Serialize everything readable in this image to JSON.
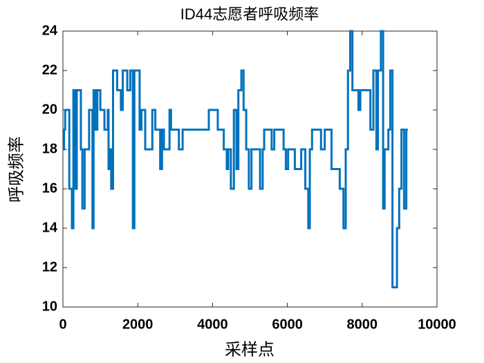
{
  "chart_data": {
    "type": "line",
    "title": "ID44志愿者呼吸频率",
    "xlabel": "采样点",
    "ylabel": "呼吸频率",
    "xlim": [
      0,
      10000
    ],
    "xticks": [
      0,
      2000,
      4000,
      6000,
      8000,
      10000
    ],
    "ylim": [
      10,
      24
    ],
    "yticks": [
      10,
      12,
      14,
      16,
      18,
      20,
      22,
      24
    ],
    "series": [
      {
        "color": "#0072bd",
        "x": [
          0,
          30,
          30,
          60,
          60,
          170,
          170,
          240,
          240,
          280,
          280,
          330,
          330,
          370,
          370,
          480,
          480,
          520,
          520,
          580,
          580,
          700,
          700,
          790,
          790,
          820,
          820,
          870,
          870,
          920,
          920,
          1000,
          1000,
          1110,
          1110,
          1200,
          1200,
          1220,
          1220,
          1270,
          1270,
          1290,
          1290,
          1340,
          1340,
          1450,
          1450,
          1550,
          1550,
          1600,
          1600,
          1720,
          1720,
          1800,
          1800,
          1870,
          1870,
          1910,
          1910,
          2050,
          2050,
          2100,
          2100,
          2200,
          2200,
          2390,
          2390,
          2470,
          2470,
          2600,
          2600,
          2650,
          2650,
          2700,
          2700,
          2850,
          2850,
          2890,
          2890,
          3100,
          3100,
          3200,
          3200,
          3900,
          3900,
          4140,
          4140,
          4300,
          4300,
          4380,
          4380,
          4420,
          4420,
          4490,
          4490,
          4570,
          4570,
          4640,
          4640,
          4690,
          4690,
          4770,
          4770,
          4830,
          4830,
          4900,
          4900,
          4970,
          4970,
          5040,
          5040,
          5270,
          5270,
          5340,
          5340,
          5380,
          5380,
          5580,
          5580,
          5650,
          5650,
          5900,
          5900,
          5960,
          5960,
          6020,
          6020,
          6200,
          6200,
          6370,
          6370,
          6480,
          6480,
          6560,
          6560,
          6600,
          6600,
          6660,
          6660,
          6900,
          6900,
          7000,
          7000,
          7180,
          7180,
          7400,
          7400,
          7500,
          7500,
          7560,
          7560,
          7620,
          7620,
          7680,
          7680,
          7740,
          7740,
          7900,
          7900,
          7950,
          7950,
          8220,
          8220,
          8300,
          8300,
          8380,
          8380,
          8420,
          8420,
          8500,
          8500,
          8560,
          8560,
          8600,
          8600,
          8700,
          8700,
          8750,
          8750,
          8810,
          8810,
          8930,
          8930,
          8990,
          8990,
          9050,
          9050,
          9120,
          9120,
          9180,
          9180,
          9220
        ],
        "values": [
          18,
          18,
          19,
          19,
          20,
          20,
          16,
          16,
          14,
          14,
          21,
          21,
          16,
          16,
          21,
          21,
          18,
          18,
          15,
          15,
          18,
          18,
          20,
          20,
          14,
          14,
          21,
          21,
          19,
          19,
          21,
          21,
          20,
          20,
          19,
          19,
          20,
          20,
          17,
          17,
          18,
          18,
          16,
          16,
          22,
          22,
          21,
          21,
          20,
          20,
          22,
          22,
          21,
          21,
          22,
          22,
          14,
          14,
          22,
          22,
          19,
          19,
          20,
          20,
          18,
          18,
          20,
          20,
          19,
          19,
          17,
          17,
          19,
          19,
          18,
          18,
          20,
          20,
          19,
          19,
          18,
          18,
          19,
          19,
          20,
          20,
          19,
          19,
          18,
          18,
          17,
          17,
          18,
          18,
          16,
          16,
          20,
          20,
          17,
          17,
          21,
          21,
          22,
          22,
          20,
          20,
          18,
          18,
          16,
          16,
          18,
          18,
          16,
          16,
          18,
          18,
          19,
          19,
          18,
          18,
          19,
          19,
          18,
          18,
          17,
          17,
          18,
          18,
          17,
          17,
          18,
          18,
          16,
          16,
          14,
          14,
          18,
          18,
          19,
          19,
          18,
          18,
          19,
          19,
          17,
          17,
          16,
          16,
          14,
          14,
          18,
          18,
          22,
          22,
          24,
          24,
          21,
          21,
          20,
          20,
          21,
          21,
          19,
          19,
          22,
          22,
          18,
          18,
          22,
          22,
          24,
          24,
          15,
          15,
          18,
          18,
          19,
          19,
          22,
          22,
          11,
          11,
          14,
          14,
          16,
          16,
          19,
          19,
          15,
          15,
          19,
          19
        ]
      }
    ]
  }
}
